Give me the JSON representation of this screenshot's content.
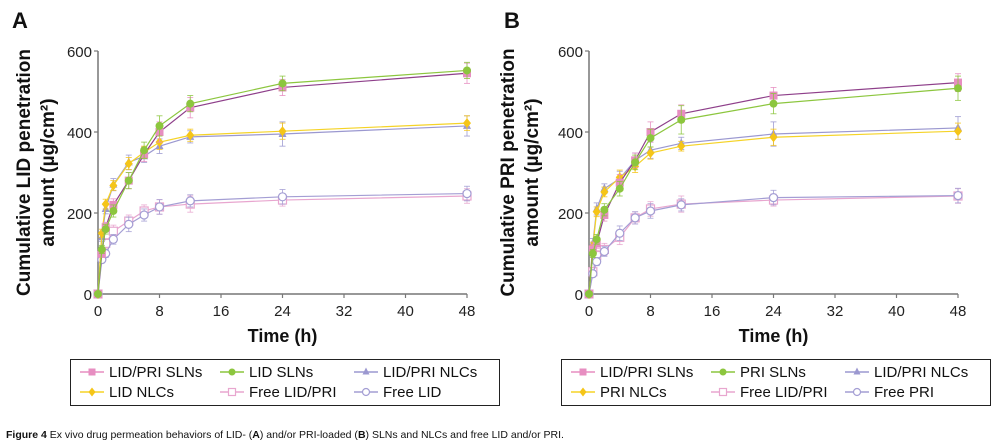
{
  "caption": {
    "label": "Figure 4",
    "parts": [
      " Ex vivo drug permeation behaviors of LID- (",
      "A",
      ") and/or PRI-loaded (",
      "B",
      ") SLNs and NLCs and free LID and/or PRI."
    ]
  },
  "chart_data": [
    {
      "type": "line",
      "panel_label": "A",
      "title": "",
      "xlabel": "Time (h)",
      "ylabel_line1": "Cumulative LID penetration",
      "ylabel_line2": "amount (µg/cm²)",
      "xlim": [
        0,
        48
      ],
      "ylim": [
        0,
        600
      ],
      "xticks": [
        0,
        8,
        16,
        24,
        32,
        40,
        48
      ],
      "yticks": [
        0,
        200,
        400,
        600
      ],
      "grid": false,
      "legend_position": "bottom",
      "x": [
        0,
        0.5,
        1,
        2,
        4,
        6,
        8,
        12,
        24,
        48
      ],
      "series": [
        {
          "name": "LID/PRI SLNs",
          "marker": "square-filled",
          "color": "#e78ec1",
          "line_color": "#8e3f8a",
          "values": [
            0,
            100,
            165,
            220,
            280,
            345,
            400,
            460,
            510,
            545
          ],
          "error": [
            0,
            10,
            12,
            15,
            20,
            18,
            25,
            25,
            20,
            25
          ]
        },
        {
          "name": "LID SLNs",
          "marker": "circle-filled",
          "color": "#8cc63e",
          "line_color": "#8cc63e",
          "values": [
            0,
            110,
            160,
            205,
            280,
            355,
            415,
            470,
            520,
            552
          ],
          "error": [
            0,
            10,
            12,
            15,
            20,
            20,
            25,
            20,
            18,
            20
          ]
        },
        {
          "name": "LID/PRI NLCs",
          "marker": "triangle-filled",
          "color": "#9b98d0",
          "line_color": "#9b98d0",
          "values": [
            0,
            140,
            210,
            270,
            325,
            340,
            365,
            388,
            395,
            415
          ],
          "error": [
            0,
            10,
            12,
            15,
            18,
            15,
            18,
            15,
            30,
            25
          ]
        },
        {
          "name": "LID NLCs",
          "marker": "diamond-filled",
          "color": "#f5c518",
          "line_color": "#f5d327",
          "values": [
            0,
            150,
            222,
            268,
            322,
            350,
            375,
            392,
            402,
            422
          ],
          "error": [
            0,
            10,
            12,
            12,
            15,
            15,
            18,
            15,
            20,
            18
          ]
        },
        {
          "name": "Free LID/PRI",
          "marker": "square-open",
          "color": "#e8a6cf",
          "line_color": "#e8a6cf",
          "values": [
            0,
            95,
            125,
            155,
            180,
            205,
            215,
            222,
            232,
            242
          ],
          "error": [
            0,
            10,
            12,
            15,
            15,
            15,
            18,
            20,
            15,
            18
          ]
        },
        {
          "name": "Free LID",
          "marker": "circle-open",
          "color": "#a49ed4",
          "line_color": "#a49ed4",
          "values": [
            0,
            85,
            100,
            135,
            172,
            195,
            215,
            230,
            240,
            248
          ],
          "error": [
            0,
            8,
            10,
            12,
            18,
            15,
            18,
            15,
            18,
            18
          ]
        }
      ]
    },
    {
      "type": "line",
      "panel_label": "B",
      "title": "",
      "xlabel": "Time (h)",
      "ylabel_line1": "Cumulative PRI penetration",
      "ylabel_line2": "amount (µg/cm²)",
      "xlim": [
        0,
        48
      ],
      "ylim": [
        0,
        600
      ],
      "xticks": [
        0,
        8,
        16,
        24,
        32,
        40,
        48
      ],
      "yticks": [
        0,
        200,
        400,
        600
      ],
      "grid": false,
      "legend_position": "bottom",
      "x": [
        0,
        0.5,
        1,
        2,
        4,
        6,
        8,
        12,
        24,
        48
      ],
      "series": [
        {
          "name": "LID/PRI SLNs",
          "marker": "square-filled",
          "color": "#e78ec1",
          "line_color": "#8e3f8a",
          "values": [
            0,
            110,
            125,
            195,
            275,
            330,
            400,
            445,
            490,
            522
          ],
          "error": [
            0,
            12,
            12,
            15,
            20,
            18,
            25,
            22,
            20,
            22
          ]
        },
        {
          "name": "PRI SLNs",
          "marker": "circle-filled",
          "color": "#8cc63e",
          "line_color": "#8cc63e",
          "values": [
            0,
            100,
            135,
            208,
            260,
            325,
            385,
            430,
            470,
            508
          ],
          "error": [
            0,
            10,
            12,
            15,
            18,
            18,
            22,
            35,
            25,
            30
          ]
        },
        {
          "name": "LID/PRI NLCs",
          "marker": "triangle-filled",
          "color": "#9b98d0",
          "line_color": "#9b98d0",
          "values": [
            0,
            125,
            210,
            260,
            285,
            330,
            355,
            372,
            395,
            410
          ],
          "error": [
            0,
            12,
            15,
            12,
            18,
            18,
            20,
            15,
            30,
            28
          ]
        },
        {
          "name": "PRI NLCs",
          "marker": "diamond-filled",
          "color": "#f5c518",
          "line_color": "#f5d327",
          "values": [
            0,
            118,
            203,
            252,
            288,
            315,
            348,
            365,
            387,
            402
          ],
          "error": [
            0,
            10,
            12,
            12,
            18,
            15,
            15,
            12,
            20,
            20
          ]
        },
        {
          "name": "Free LID/PRI",
          "marker": "square-open",
          "color": "#e8a6cf",
          "line_color": "#e8a6cf",
          "values": [
            0,
            55,
            95,
            110,
            140,
            188,
            210,
            222,
            232,
            242
          ],
          "error": [
            0,
            10,
            12,
            15,
            18,
            15,
            18,
            20,
            15,
            18
          ]
        },
        {
          "name": "Free PRI",
          "marker": "circle-open",
          "color": "#a49ed4",
          "line_color": "#a49ed4",
          "values": [
            0,
            50,
            80,
            105,
            150,
            188,
            205,
            220,
            238,
            243
          ],
          "error": [
            0,
            8,
            10,
            12,
            18,
            15,
            18,
            15,
            18,
            18
          ]
        }
      ]
    }
  ]
}
